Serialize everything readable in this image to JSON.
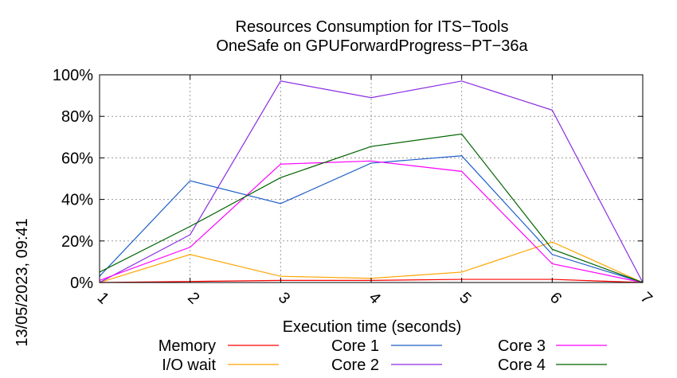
{
  "chart_data": {
    "type": "line",
    "title": "Resources Consumption for ITS−Tools",
    "subtitle": "OneSafe on GPUForwardProgress−PT−36a",
    "xlabel": "Execution time (seconds)",
    "ylabel": "",
    "side_label": "13/05/2023, 09:41",
    "x": [
      1,
      2,
      3,
      4,
      5,
      6,
      7
    ],
    "x_ticks": [
      "1",
      "2",
      "3",
      "4",
      "5",
      "6",
      "7"
    ],
    "xlim": [
      1,
      7
    ],
    "ylim": [
      0,
      100
    ],
    "y_ticks": [
      "0%",
      "20%",
      "40%",
      "60%",
      "80%",
      "100%"
    ],
    "y_tick_values": [
      0,
      20,
      40,
      60,
      80,
      100
    ],
    "grid": true,
    "legend_position": "bottom",
    "series": [
      {
        "name": "Memory",
        "color": "#ff0000",
        "values": [
          0,
          0.5,
          1,
          1,
          1.5,
          1.5,
          0
        ]
      },
      {
        "name": "I/O wait",
        "color": "#ffa500",
        "values": [
          0,
          13.5,
          3,
          2,
          5,
          19.5,
          0
        ]
      },
      {
        "name": "Core 1",
        "color": "#1e5ec8",
        "values": [
          3,
          49,
          38,
          57.5,
          61,
          13.5,
          0
        ]
      },
      {
        "name": "Core 2",
        "color": "#8a2be2",
        "values": [
          0,
          23,
          97,
          89,
          97,
          83,
          0
        ]
      },
      {
        "name": "Core 3",
        "color": "#ff00ff",
        "values": [
          1,
          17,
          57,
          58.5,
          53.5,
          9,
          0
        ]
      },
      {
        "name": "Core 4",
        "color": "#006400",
        "values": [
          5,
          27,
          50.5,
          65.5,
          71.5,
          16,
          0
        ]
      }
    ]
  }
}
